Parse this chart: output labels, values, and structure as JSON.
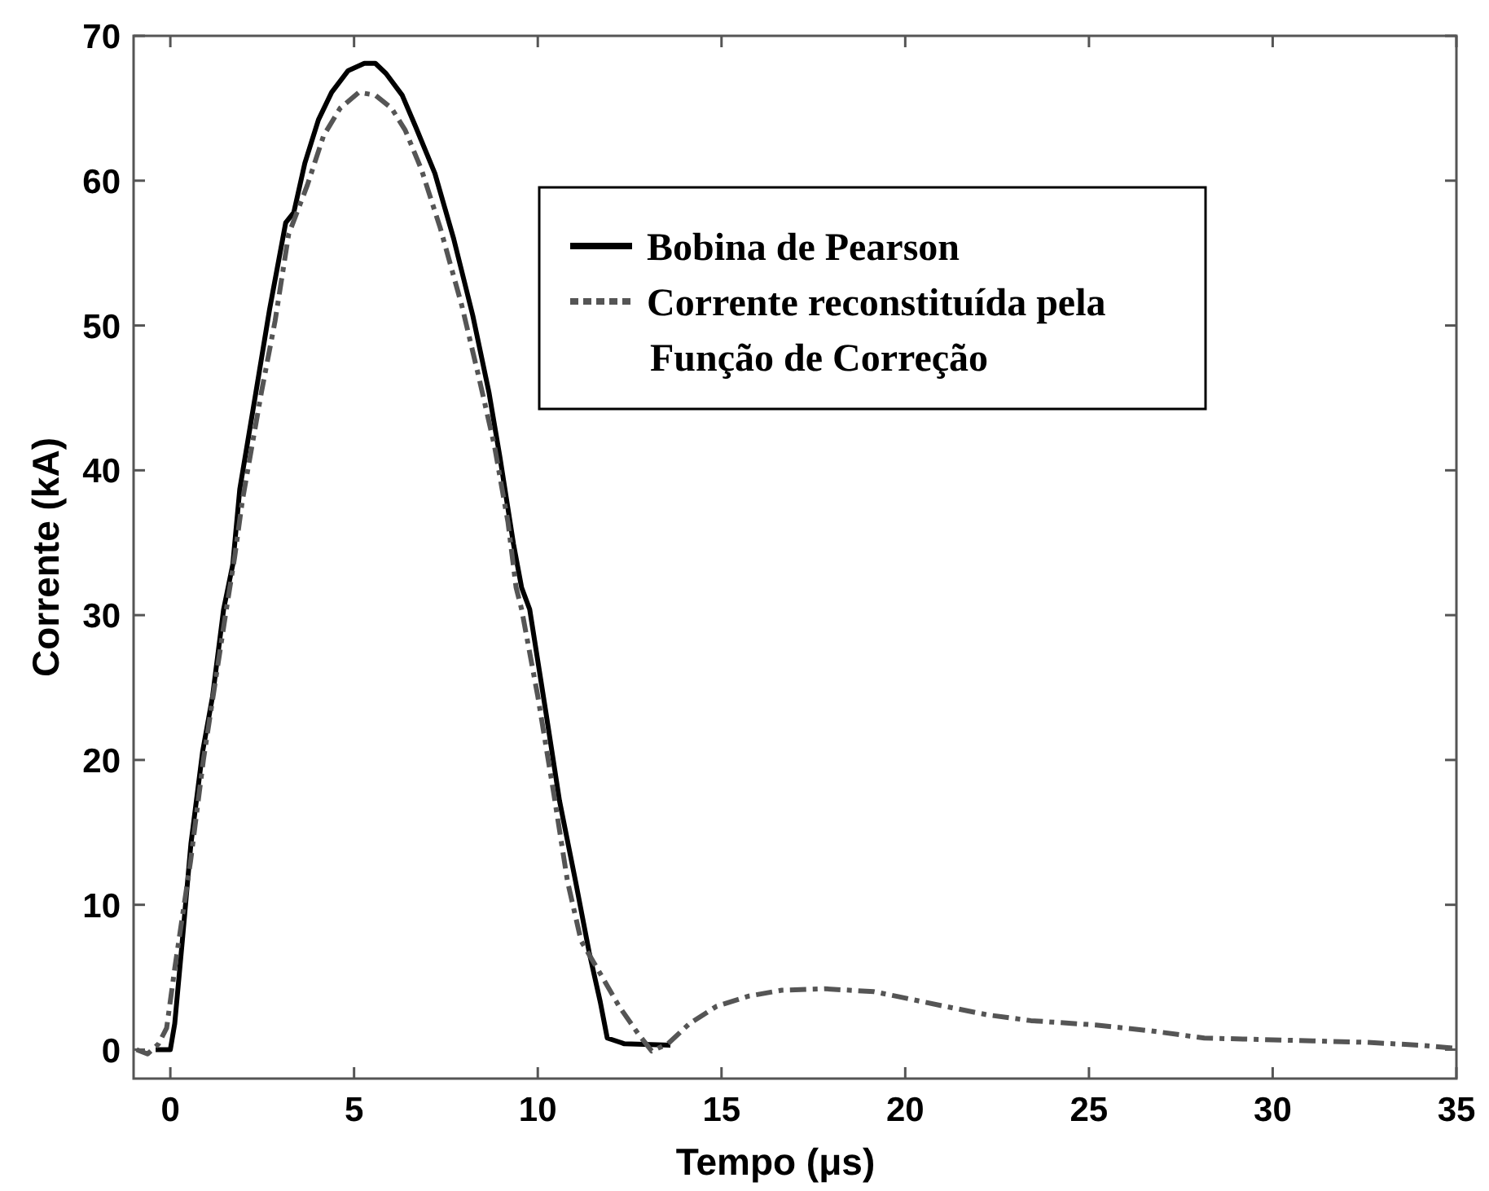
{
  "chart_data": {
    "type": "line",
    "xlabel": "Tempo (μs)",
    "ylabel": "Corrente (kA)",
    "xlim": [
      -1,
      35
    ],
    "ylim": [
      -2,
      70
    ],
    "xticks": [
      0,
      5,
      10,
      15,
      20,
      25,
      30,
      35
    ],
    "yticks": [
      0,
      10,
      20,
      30,
      40,
      50,
      60,
      70
    ],
    "legend": "top right",
    "series": [
      {
        "name": "Bobina de Pearson",
        "color": "#000000",
        "line_style": "solid",
        "x": [
          -0.4,
          0,
          0.12,
          0.34,
          0.56,
          0.88,
          1.15,
          1.45,
          1.7,
          1.89,
          2.33,
          2.7,
          3.14,
          3.36,
          3.66,
          4.03,
          4.39,
          4.84,
          5.28,
          5.58,
          5.87,
          6.31,
          6.68,
          7.2,
          7.71,
          8.23,
          8.67,
          8.97,
          9.34,
          9.56,
          9.78,
          10.22,
          10.59,
          11.03,
          11.4,
          11.7,
          11.89,
          12.36,
          13.61
        ],
        "values": [
          0,
          0,
          1.8,
          7.9,
          14.2,
          20.6,
          24.4,
          30.4,
          33.5,
          38.7,
          45.4,
          51.1,
          57.1,
          57.8,
          61.2,
          64.2,
          66.1,
          67.6,
          68.1,
          68.1,
          67.4,
          65.9,
          63.7,
          60.5,
          56,
          50.7,
          45.4,
          40.9,
          34.9,
          31.9,
          30.4,
          23.3,
          17.2,
          11.6,
          6.7,
          3.3,
          0.8,
          0.4,
          0.3
        ]
      },
      {
        "name": "Corrente reconstituída pela Função de Correção",
        "color": "#555555",
        "line_style": "dashed",
        "x": [
          -0.92,
          -0.62,
          -0.32,
          -0.1,
          0.12,
          0.55,
          0.9,
          1.2,
          1.5,
          1.75,
          1.96,
          2.48,
          2.85,
          3.22,
          3.73,
          4.17,
          4.62,
          5.13,
          5.58,
          6.02,
          6.39,
          6.83,
          7.35,
          7.93,
          8.38,
          8.82,
          9.19,
          9.41,
          9.56,
          10,
          10.44,
          10.81,
          11.18,
          11.62,
          12.21,
          12.73,
          13.1,
          13.54,
          14.13,
          14.87,
          15.75,
          16.64,
          17.82,
          19.15,
          19.73,
          21.06,
          22.24,
          23.42,
          25.19,
          26.67,
          28.14,
          29.62,
          31.09,
          32.57,
          34.04,
          34.93
        ],
        "values": [
          0,
          -0.3,
          0.4,
          1.5,
          5.6,
          13,
          20,
          25,
          30,
          34,
          37.9,
          45.4,
          50.3,
          56.3,
          59.7,
          63.1,
          65,
          66.1,
          65.9,
          65,
          63.5,
          60.8,
          56.7,
          51.4,
          46.6,
          41.7,
          36.4,
          31.9,
          30.4,
          24.4,
          17.6,
          11.6,
          7.5,
          5.6,
          3,
          1.1,
          -0.1,
          0.4,
          1.8,
          3,
          3.7,
          4.1,
          4.2,
          4,
          3.7,
          3,
          2.4,
          2,
          1.7,
          1.3,
          0.8,
          0.7,
          0.6,
          0.5,
          0.3,
          0.1
        ]
      }
    ]
  }
}
